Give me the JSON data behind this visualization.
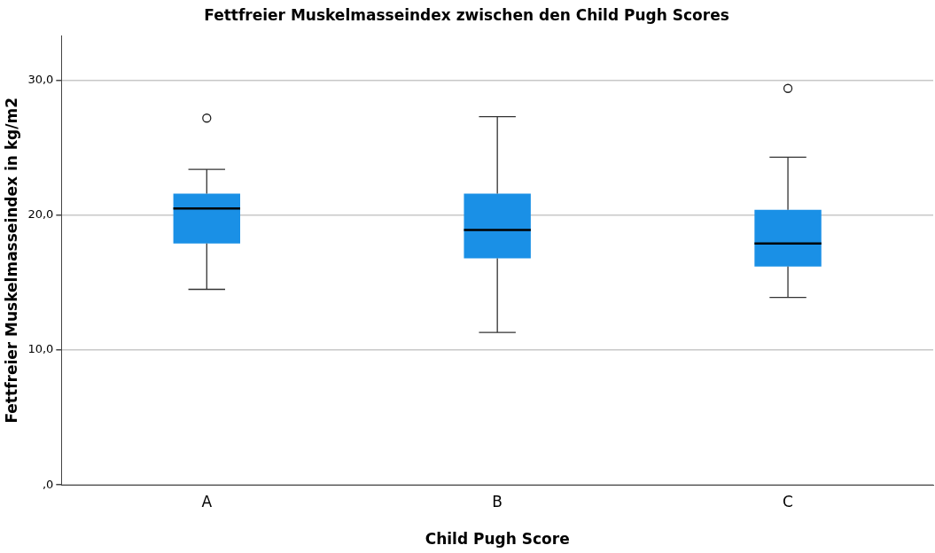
{
  "chart_data": {
    "type": "box",
    "title": "Fettfreier Muskelmasseindex zwischen den Child Pugh Scores",
    "xlabel": "Child Pugh Score",
    "ylabel": "Fettfreier Muskelmasseindex in kg/m2",
    "categories": [
      "A",
      "B",
      "C"
    ],
    "color": "#1a90e6",
    "boxes": [
      {
        "low": 14.5,
        "q1": 17.9,
        "median": 20.5,
        "q3": 21.6,
        "high": 23.4,
        "outliers": [
          27.2
        ]
      },
      {
        "low": 11.3,
        "q1": 16.8,
        "median": 18.9,
        "q3": 21.6,
        "high": 27.3
      },
      {
        "low": 13.9,
        "q1": 16.2,
        "median": 17.9,
        "q3": 20.4,
        "high": 24.3,
        "outliers": [
          29.4
        ]
      }
    ],
    "ylim": [
      0,
      33.3
    ],
    "yticks": [
      {
        "value": 0,
        "label": ",0"
      },
      {
        "value": 10,
        "label": "10,0"
      },
      {
        "value": 20,
        "label": "20,0"
      },
      {
        "value": 30,
        "label": "30,0"
      }
    ],
    "grid": "y",
    "legend": false
  }
}
